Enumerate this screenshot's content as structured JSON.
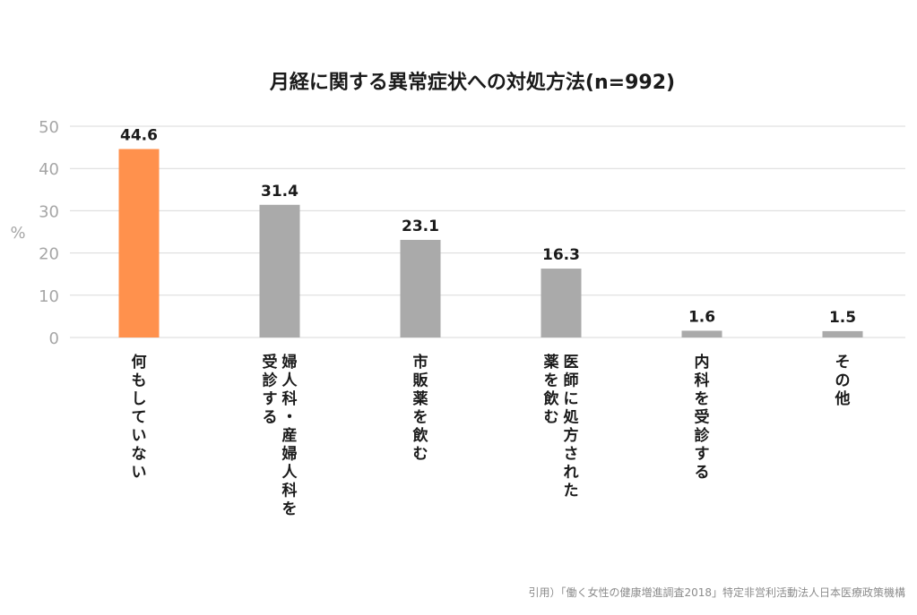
{
  "chart_data": {
    "type": "bar",
    "title": "月経に関する異常症状への対処方法(n=992)",
    "ylabel": "%",
    "xlabel": "",
    "ylim": [
      0,
      50
    ],
    "yticks": [
      "0",
      "10",
      "20",
      "30",
      "40",
      "50"
    ],
    "grid": true,
    "categories": [
      "何もしていない",
      "婦人科・産婦人科を受診する",
      "市販薬を飲む",
      "医師に処方された薬を飲む",
      "内科を受診する",
      "その他"
    ],
    "category_lines": [
      [
        "何もしていない"
      ],
      [
        "婦人科・産婦人科を",
        "受診する"
      ],
      [
        "市販薬を飲む"
      ],
      [
        "医師に処方された",
        "薬を飲む"
      ],
      [
        "内科を受診する"
      ],
      [
        "その他"
      ]
    ],
    "values": [
      44.6,
      31.4,
      23.1,
      16.3,
      1.6,
      1.5
    ],
    "value_labels": [
      "44.6",
      "31.4",
      "23.1",
      "16.3",
      "1.6",
      "1.5"
    ],
    "colors": [
      "#ff914d",
      "#aaaaaa",
      "#aaaaaa",
      "#aaaaaa",
      "#aaaaaa",
      "#aaaaaa"
    ],
    "grid_color": "#d9d9d9"
  },
  "source": "引用）「働く女性の健康増進調査2018」特定非営利活動法人日本医療政策機構"
}
